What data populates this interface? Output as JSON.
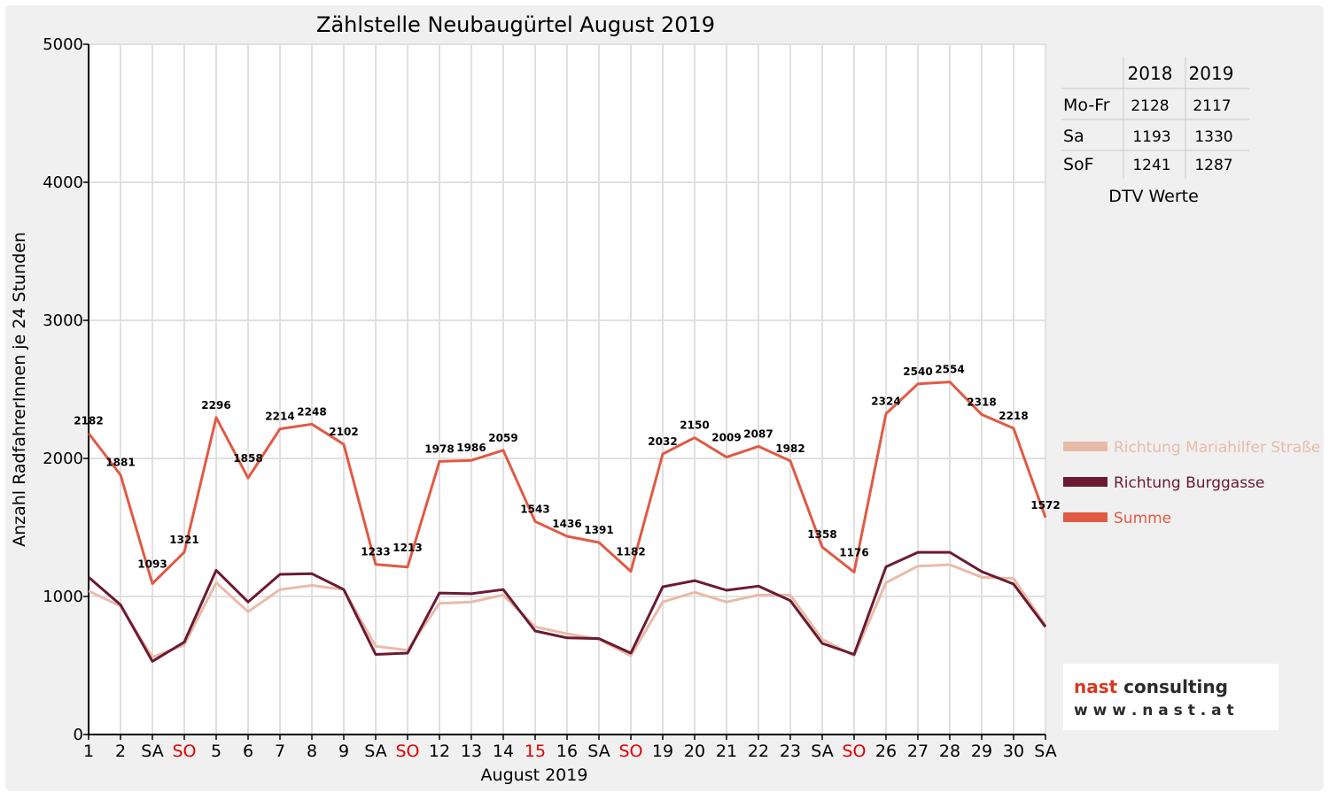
{
  "chart_data": {
    "type": "line",
    "title": "Zählstelle Neubaugürtel August 2019",
    "xlabel": "August 2019",
    "ylabel": "Anzahl RadfahrerInnen je 24 Stunden",
    "ylim": [
      0,
      5000
    ],
    "yticks": [
      "0",
      "1000",
      "2000",
      "3000",
      "4000",
      "5000"
    ],
    "grid": true,
    "legend_position": "right",
    "categories": [
      "1",
      "2",
      "SA",
      "SO",
      "5",
      "6",
      "7",
      "8",
      "9",
      "SA",
      "SO",
      "12",
      "13",
      "14",
      "15",
      "16",
      "SA",
      "SO",
      "19",
      "20",
      "21",
      "22",
      "23",
      "SA",
      "SO",
      "26",
      "27",
      "28",
      "29",
      "30",
      "SA"
    ],
    "highlighted_categories": [
      3,
      10,
      14,
      17,
      24
    ],
    "series": [
      {
        "name": "Richtung Mariahilfer Straße",
        "color": "#e8bba8",
        "values": [
          1040,
          930,
          560,
          650,
          1100,
          890,
          1050,
          1080,
          1050,
          640,
          610,
          950,
          960,
          1010,
          780,
          730,
          690,
          570,
          960,
          1030,
          960,
          1010,
          1010,
          690,
          570,
          1100,
          1220,
          1230,
          1140,
          1130,
          790
        ]
      },
      {
        "name": "Richtung Burggasse",
        "color": "#6b1a32",
        "values": [
          1140,
          940,
          530,
          670,
          1190,
          960,
          1160,
          1165,
          1050,
          580,
          590,
          1025,
          1020,
          1050,
          750,
          700,
          695,
          590,
          1070,
          1115,
          1045,
          1075,
          970,
          660,
          580,
          1215,
          1320,
          1320,
          1180,
          1090,
          780
        ]
      },
      {
        "name": "Summe",
        "color": "#e05a44",
        "values": [
          2182,
          1881,
          1093,
          1321,
          2296,
          1858,
          2214,
          2248,
          2102,
          1233,
          1213,
          1978,
          1986,
          2059,
          1543,
          1436,
          1391,
          1182,
          2032,
          2150,
          2009,
          2087,
          1982,
          1358,
          1176,
          2324,
          2540,
          2554,
          2318,
          2218,
          1572
        ]
      }
    ],
    "data_labels": [
      "2182",
      "1881",
      "1093",
      "1321",
      "2296",
      "1858",
      "2214",
      "2248",
      "2102",
      "1233",
      "1213",
      "1978",
      "1986",
      "2059",
      "1543",
      "1436",
      "1391",
      "1182",
      "2032",
      "2150",
      "2009",
      "2087",
      "1982",
      "1358",
      "1176",
      "2324",
      "2540",
      "2554",
      "2318",
      "2218",
      "1572"
    ]
  },
  "dtv_table": {
    "caption": "DTV Werte",
    "headers": [
      "",
      "2018",
      "2019"
    ],
    "rows": [
      {
        "label": "Mo-Fr",
        "v2018": "2128",
        "v2019": "2117"
      },
      {
        "label": "Sa",
        "v2018": "1193",
        "v2019": "1330"
      },
      {
        "label": "SoF",
        "v2018": "1241",
        "v2019": "1287"
      }
    ]
  },
  "logo": {
    "line1_a": "nast",
    "line1_b": " consulting",
    "line2": "w w w . n a s t . a t"
  },
  "colors": {
    "highlight_red": "#e00000",
    "frame_bg": "#f0f0f0",
    "grid": "#e0e0e0"
  }
}
